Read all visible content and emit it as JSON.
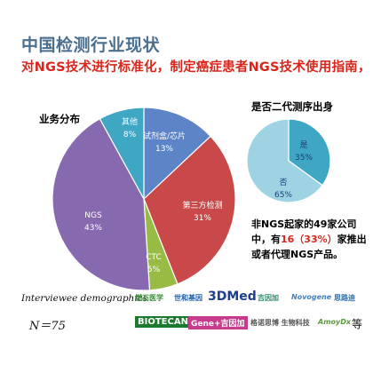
{
  "header": {
    "title": "中国检测行业现状",
    "subtitle": "对NGS技术进行标准化，制定癌症患者NGS技术使用指南，"
  },
  "chart_data": [
    {
      "type": "pie",
      "title": "业务分布",
      "slices": [
        {
          "label": "试剂盒/芯片",
          "value": 13,
          "value_label": "13%",
          "color": "#5d84c7"
        },
        {
          "label": "第三方检测",
          "value": 31,
          "value_label": "31%",
          "color": "#c9494a"
        },
        {
          "label": "CTC",
          "value": 5,
          "value_label": "5%",
          "color": "#98bb45"
        },
        {
          "label": "NGS",
          "value": 43,
          "value_label": "43%",
          "color": "#8769b0"
        },
        {
          "label": "其他",
          "value": 8,
          "value_label": "8%",
          "color": "#3fa6c4"
        }
      ]
    },
    {
      "type": "pie",
      "title": "是否二代测序出身",
      "slices": [
        {
          "label": "是",
          "value": 35,
          "value_label": "35%",
          "color": "#3fa6c4"
        },
        {
          "label": "否",
          "value": 65,
          "value_label": "65%",
          "color": "#9ed3e4"
        }
      ]
    }
  ],
  "note": {
    "line1": "非NGS起家的49家公司",
    "line2_pre": "中，有",
    "line2_hl": "16（33%）",
    "line2_post": "家推出",
    "line3": "或者代理NGS产品。"
  },
  "footer": {
    "interviewee_label": "Interviewee demographics",
    "n_label": "N＝75",
    "etc": "等",
    "logos": [
      {
        "text": "燃石医学",
        "color": "#3a8d3a"
      },
      {
        "text": "世和基因",
        "color": "#1e5fa8"
      },
      {
        "text": "3DMed",
        "color": "#1c3f8f"
      },
      {
        "text": "吉因加",
        "color": "#2a8a6a"
      },
      {
        "text": "Novogene",
        "color": "#3f7fc4"
      },
      {
        "text": "思路迪",
        "color": "#2e6ca8"
      },
      {
        "text": "BIOTECAN",
        "color": "#1b7a2e"
      },
      {
        "text": "Gene+吉因加",
        "color": "#ffffff"
      },
      {
        "text": "格诺思博 生物科技",
        "color": "#555555"
      },
      {
        "text": "AmoyDx",
        "color": "#5a9a3a"
      }
    ]
  }
}
